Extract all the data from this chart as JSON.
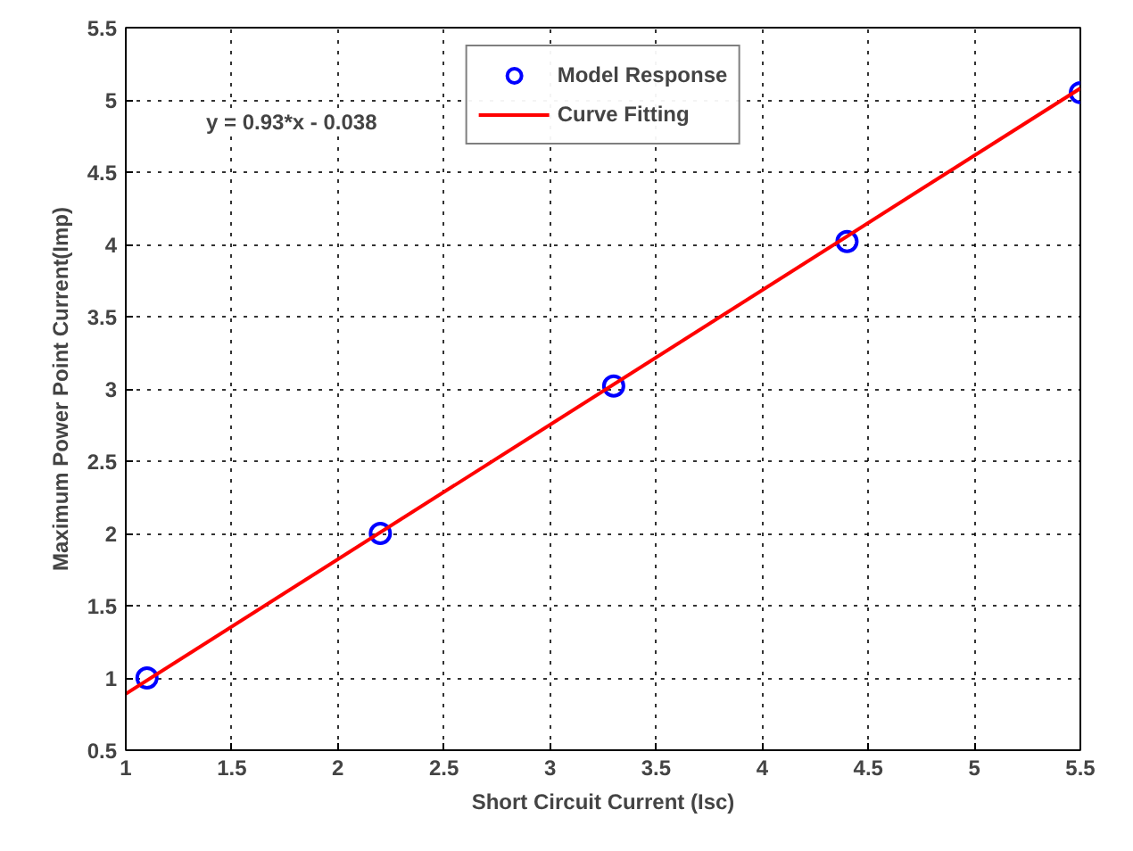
{
  "chart_data": {
    "type": "scatter",
    "xlabel": "Short Circuit Current (Isc)",
    "ylabel": "Maximum Power Point Current(Imp)",
    "annotations": [
      "y = 0.93*x - 0.038"
    ],
    "series": [
      {
        "name": "Model Response",
        "color": "#0000ff",
        "marker": "circle",
        "x": [
          1.1,
          2.2,
          3.3,
          4.4,
          5.5
        ],
        "values": [
          1.0,
          2.0,
          3.02,
          4.02,
          5.05
        ]
      },
      {
        "name": "Curve Fitting",
        "type": "line",
        "color": "#ff0000",
        "marker": "none",
        "x": [
          1.0,
          5.5
        ],
        "values": [
          0.89,
          5.08
        ]
      }
    ],
    "xlim": [
      1,
      5.5
    ],
    "xticks": [
      1,
      1.5,
      2,
      2.5,
      3,
      3.5,
      4,
      4.5,
      5,
      5.5
    ],
    "ylim": [
      0.5,
      5.5
    ],
    "yticks": [
      0.5,
      1,
      1.5,
      2,
      2.5,
      3,
      3.5,
      4,
      4.5,
      5,
      5.5
    ],
    "grid": true,
    "legend": "top",
    "line_style": "solid"
  }
}
